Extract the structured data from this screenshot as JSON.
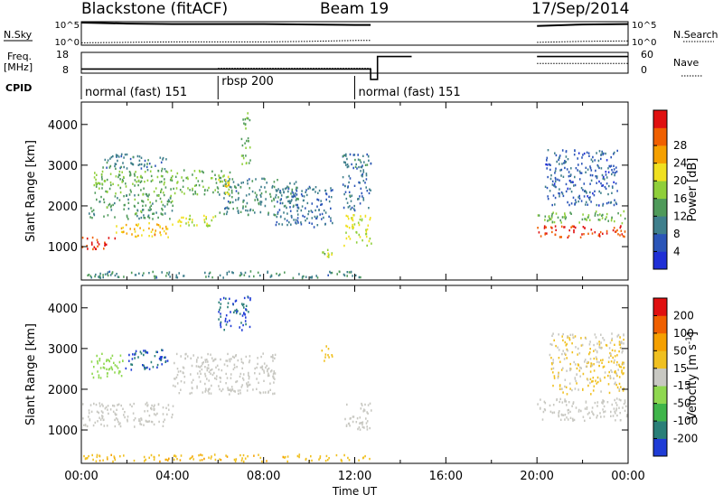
{
  "header": {
    "station": "Blackstone (fitACF)",
    "beam": "Beam 19",
    "date": "17/Sep/2014"
  },
  "chart_data": [
    {
      "type": "line",
      "panel": "nsky",
      "left_label": "N.Sky",
      "right_label": "N.Search",
      "left_ticks": [
        "10^5",
        "10^0"
      ],
      "right_ticks": [
        "10^5",
        "10^0"
      ],
      "x": [
        0,
        2,
        4,
        6,
        8,
        10,
        12,
        12.7,
        20,
        22,
        24
      ],
      "nsky": [
        4.8,
        4.6,
        4.5,
        4.5,
        4.5,
        4.4,
        4.3,
        4.3,
        4.1,
        4.4,
        4.5
      ],
      "nsearch": [
        0.5,
        0.6,
        0.7,
        0.7,
        0.7,
        0.8,
        1.0,
        1.0,
        0.6,
        0.8,
        0.9
      ],
      "gaps": [
        [
          12.7,
          20.0
        ]
      ],
      "ylim": [
        0,
        5
      ]
    },
    {
      "type": "line",
      "panel": "freq",
      "left_label": "Freq.",
      "left_unit": "[MHz]",
      "right_label": "Nave",
      "left_ticks": [
        "18",
        "8"
      ],
      "right_ticks": [
        "60",
        "0"
      ],
      "freq_segments": [
        [
          0.0,
          12.7,
          10.0
        ],
        [
          12.7,
          13.0,
          5.0
        ],
        [
          13.0,
          14.5,
          16.0
        ],
        [
          20.0,
          24.0,
          16.0
        ]
      ],
      "nave_segments": [
        [
          0.0,
          6.0,
          0.0
        ],
        [
          6.0,
          12.7,
          14.0
        ],
        [
          20.0,
          24.0,
          28.0
        ]
      ],
      "freq_range": [
        8,
        18
      ],
      "nave_range": [
        0,
        60
      ]
    },
    {
      "type": "table",
      "panel": "cpid",
      "label": "CPID",
      "segments": [
        {
          "start": 0.0,
          "end": 6.0,
          "name": "normal (fast) 151"
        },
        {
          "start": 6.0,
          "end": 12.0,
          "name": "rbsp 200"
        },
        {
          "start": 12.0,
          "end": 24.0,
          "name": "normal (fast) 151"
        }
      ]
    },
    {
      "type": "heatmap",
      "panel": "power",
      "ylabel": "Slant Range [km]",
      "yticks": [
        1000,
        2000,
        3000,
        4000
      ],
      "ylim": [
        180,
        4550
      ],
      "colorbar": {
        "label": "Power [dB]",
        "ticks": [
          "4",
          "8",
          "12",
          "16",
          "20",
          "24",
          "28"
        ],
        "colors": [
          "#1f2fd6",
          "#2b55b8",
          "#3f7f8c",
          "#4f9a5a",
          "#8fcf3a",
          "#f0e020",
          "#f5a000",
          "#f06000",
          "#e01010"
        ],
        "range": [
          0,
          32
        ]
      },
      "echo_regions": [
        {
          "t0": 0.0,
          "t1": 1.5,
          "r0": 950,
          "r1": 1250,
          "value": 28
        },
        {
          "t0": 1.5,
          "t1": 4.0,
          "r0": 1250,
          "r1": 1600,
          "value": 22
        },
        {
          "t0": 4.0,
          "t1": 6.0,
          "r0": 1500,
          "r1": 1800,
          "value": 18
        },
        {
          "t0": 0.3,
          "t1": 4.0,
          "r0": 1700,
          "r1": 2300,
          "value": 12
        },
        {
          "t0": 0.5,
          "t1": 6.5,
          "r0": 2300,
          "r1": 2900,
          "value": 14
        },
        {
          "t0": 0.8,
          "t1": 3.8,
          "r0": 2900,
          "r1": 3300,
          "value": 9
        },
        {
          "t0": 6.0,
          "t1": 9.5,
          "r0": 1800,
          "r1": 2700,
          "value": 10
        },
        {
          "t0": 6.0,
          "t1": 6.5,
          "r0": 2300,
          "r1": 2800,
          "value": 19
        },
        {
          "t0": 7.0,
          "t1": 7.4,
          "r0": 3000,
          "r1": 4400,
          "value": 14
        },
        {
          "t0": 8.5,
          "t1": 11.0,
          "r0": 1500,
          "r1": 2500,
          "value": 7
        },
        {
          "t0": 10.5,
          "t1": 11.0,
          "r0": 750,
          "r1": 950,
          "value": 17
        },
        {
          "t0": 11.5,
          "t1": 12.7,
          "r0": 1000,
          "r1": 1800,
          "value": 18
        },
        {
          "t0": 11.4,
          "t1": 12.7,
          "r0": 1900,
          "r1": 3300,
          "value": 8
        },
        {
          "t0": 0.0,
          "t1": 12.7,
          "r0": 250,
          "r1": 420,
          "value": 10
        },
        {
          "t0": 20.0,
          "t1": 24.0,
          "r0": 1250,
          "r1": 1550,
          "value": 29
        },
        {
          "t0": 20.0,
          "t1": 24.0,
          "r0": 1600,
          "r1": 1900,
          "value": 14
        },
        {
          "t0": 20.3,
          "t1": 23.5,
          "r0": 2000,
          "r1": 3400,
          "value": 6
        }
      ]
    },
    {
      "type": "heatmap",
      "panel": "velocity",
      "ylabel": "Slant Range [km]",
      "xlabel": "Time UT",
      "xticks": [
        "00:00",
        "04:00",
        "08:00",
        "12:00",
        "16:00",
        "20:00",
        "00:00"
      ],
      "xlim": [
        0,
        24
      ],
      "yticks": [
        1000,
        2000,
        3000,
        4000
      ],
      "ylim": [
        180,
        4550
      ],
      "colorbar": {
        "label": "Velocity [m s^-1]",
        "ticks": [
          "200",
          "100",
          "50",
          "15",
          "-15",
          "-50",
          "-100",
          "-200"
        ],
        "colors": [
          "#1f3cd6",
          "#2a7f78",
          "#3fb54a",
          "#8fd850",
          "#c8c8c2",
          "#f0c020",
          "#f5a000",
          "#f06000",
          "#e01010"
        ],
        "range": [
          -250,
          250
        ]
      },
      "echo_regions": [
        {
          "t0": 0.0,
          "t1": 4.0,
          "r0": 1100,
          "r1": 1700,
          "value": 0
        },
        {
          "t0": 1.8,
          "t1": 3.8,
          "r0": 2500,
          "r1": 3000,
          "value": -200
        },
        {
          "t0": 0.3,
          "t1": 1.8,
          "r0": 2300,
          "r1": 2900,
          "value": -60
        },
        {
          "t0": 4.0,
          "t1": 8.5,
          "r0": 1900,
          "r1": 2900,
          "value": 0
        },
        {
          "t0": 6.0,
          "t1": 7.4,
          "r0": 3400,
          "r1": 4300,
          "value": -200
        },
        {
          "t0": 10.5,
          "t1": 11.0,
          "r0": 2700,
          "r1": 3100,
          "value": 60
        },
        {
          "t0": 11.5,
          "t1": 12.7,
          "r0": 1000,
          "r1": 1700,
          "value": 0
        },
        {
          "t0": 0.0,
          "t1": 12.7,
          "r0": 250,
          "r1": 420,
          "value": 70
        },
        {
          "t0": 20.0,
          "t1": 24.0,
          "r0": 1250,
          "r1": 1800,
          "value": 0
        },
        {
          "t0": 20.5,
          "t1": 23.8,
          "r0": 1900,
          "r1": 3400,
          "value": 30
        }
      ]
    }
  ]
}
